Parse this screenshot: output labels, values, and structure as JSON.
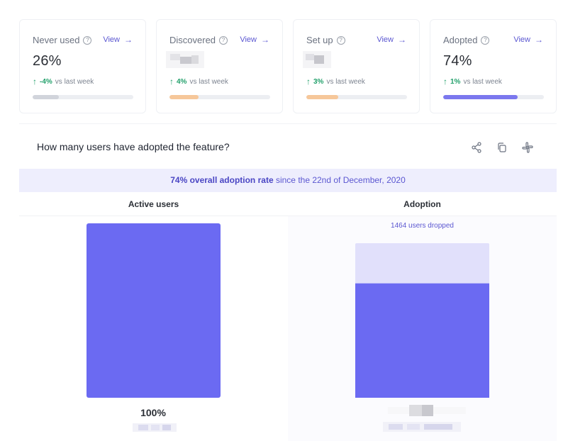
{
  "cards": [
    {
      "title": "Never used",
      "view_label": "View",
      "value": "26%",
      "delta": "-4%",
      "delta_suffix": "vs last week",
      "progress": 0.26,
      "bar_color": "#d1d4db"
    },
    {
      "title": "Discovered",
      "view_label": "View",
      "value": null,
      "delta": "4%",
      "delta_suffix": "vs last week",
      "progress": 0.29,
      "bar_color": "#f6c79a"
    },
    {
      "title": "Set up",
      "view_label": "View",
      "value": null,
      "delta": "3%",
      "delta_suffix": "vs last week",
      "progress": 0.32,
      "bar_color": "#f6c79a"
    },
    {
      "title": "Adopted",
      "view_label": "View",
      "value": "74%",
      "delta": "1%",
      "delta_suffix": "vs last week",
      "progress": 0.74,
      "bar_color": "#7b78ee"
    }
  ],
  "panel": {
    "title": "How many users have adopted the feature?",
    "banner_strong": "74% overall adoption rate",
    "banner_rest": "since the 22nd of December, 2020",
    "columns": [
      "Active users",
      "Adoption"
    ],
    "dropped_text": "1464 users dropped",
    "left_value": "100%"
  },
  "chart_data": {
    "type": "bar",
    "categories": [
      "Active users",
      "Adoption"
    ],
    "values": [
      100,
      74
    ],
    "ylim": [
      0,
      100
    ],
    "annotations": [
      "1464 users dropped"
    ]
  },
  "colors": {
    "accent": "#6b6af2",
    "dropped": "#e1e0fb"
  },
  "icons": [
    "info-icon",
    "arrow-right-icon",
    "share-icon",
    "copy-icon",
    "slack-icon"
  ]
}
